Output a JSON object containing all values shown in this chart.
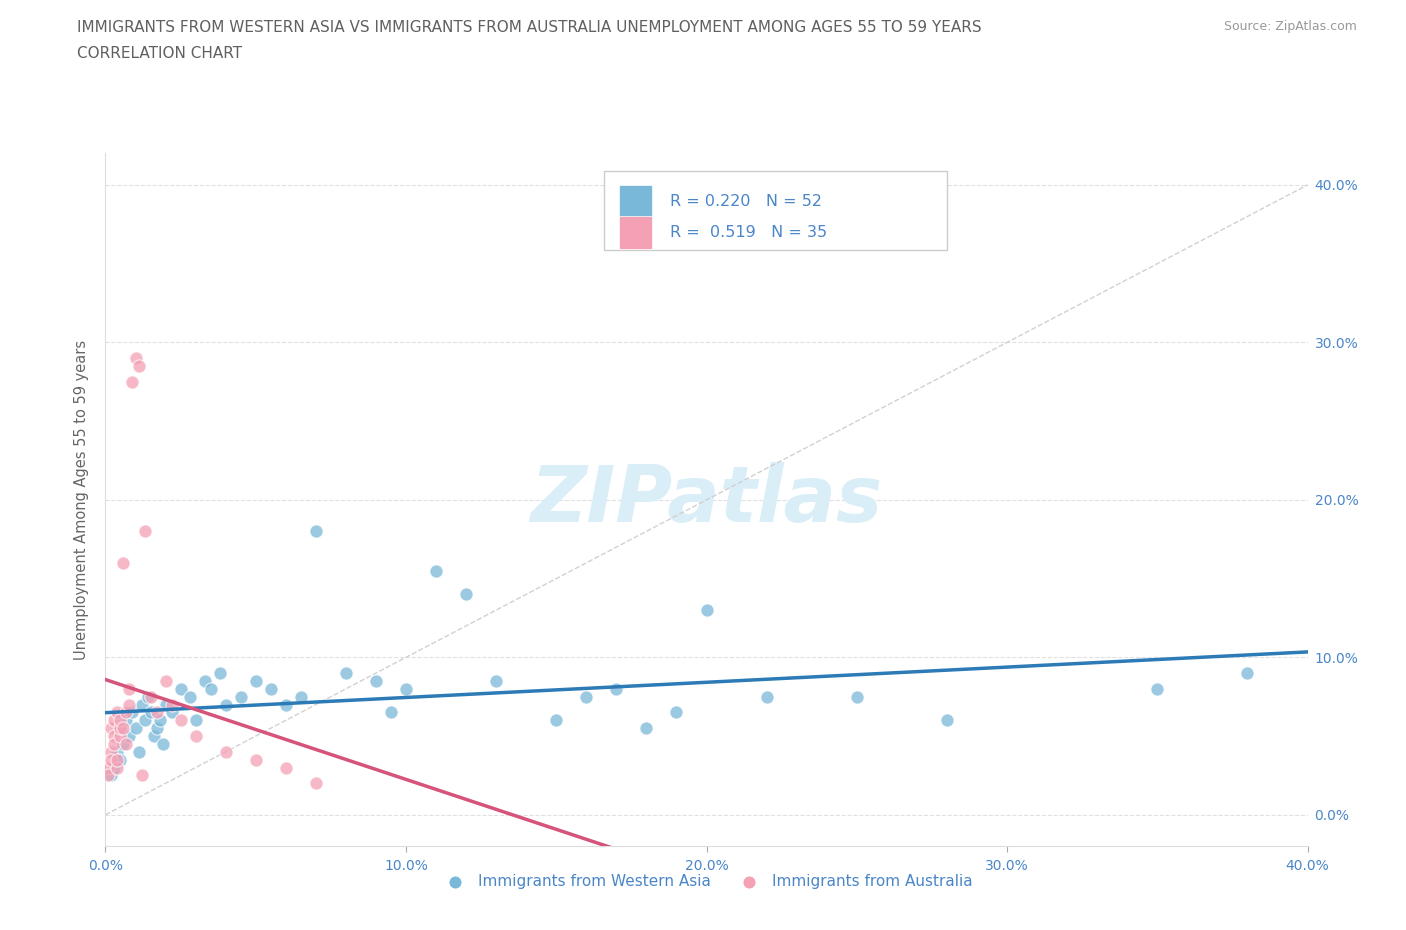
{
  "title_line1": "IMMIGRANTS FROM WESTERN ASIA VS IMMIGRANTS FROM AUSTRALIA UNEMPLOYMENT AMONG AGES 55 TO 59 YEARS",
  "title_line2": "CORRELATION CHART",
  "source_text": "Source: ZipAtlas.com",
  "ylabel": "Unemployment Among Ages 55 to 59 years",
  "xlim": [
    0.0,
    0.4
  ],
  "ylim": [
    -0.02,
    0.42
  ],
  "xticks": [
    0.0,
    0.1,
    0.2,
    0.3,
    0.4
  ],
  "yticks": [
    0.0,
    0.1,
    0.2,
    0.3,
    0.4
  ],
  "xtick_labels": [
    "0.0%",
    "10.0%",
    "20.0%",
    "30.0%",
    "40.0%"
  ],
  "ytick_labels_right": [
    "0.0%",
    "10.0%",
    "20.0%",
    "30.0%",
    "40.0%"
  ],
  "blue_color": "#7ab8d9",
  "pink_color": "#f4a0b5",
  "blue_line_color": "#2c7bb6",
  "pink_line_color": "#d6537a",
  "diagonal_color": "#cccccc",
  "watermark_color": "#daeef8",
  "legend_R_blue": "R = 0.220",
  "legend_N_blue": "N = 52",
  "legend_R_pink": "R =  0.519",
  "legend_N_pink": "N = 35",
  "blue_scatter_x": [
    0.002,
    0.003,
    0.004,
    0.005,
    0.005,
    0.006,
    0.007,
    0.008,
    0.009,
    0.01,
    0.011,
    0.012,
    0.013,
    0.014,
    0.015,
    0.016,
    0.017,
    0.018,
    0.019,
    0.02,
    0.022,
    0.025,
    0.028,
    0.03,
    0.033,
    0.035,
    0.038,
    0.04,
    0.045,
    0.05,
    0.055,
    0.06,
    0.065,
    0.07,
    0.08,
    0.09,
    0.095,
    0.1,
    0.11,
    0.12,
    0.13,
    0.15,
    0.16,
    0.17,
    0.18,
    0.19,
    0.2,
    0.22,
    0.25,
    0.28,
    0.35,
    0.38
  ],
  "blue_scatter_y": [
    0.025,
    0.03,
    0.04,
    0.035,
    0.055,
    0.045,
    0.06,
    0.05,
    0.065,
    0.055,
    0.04,
    0.07,
    0.06,
    0.075,
    0.065,
    0.05,
    0.055,
    0.06,
    0.045,
    0.07,
    0.065,
    0.08,
    0.075,
    0.06,
    0.085,
    0.08,
    0.09,
    0.07,
    0.075,
    0.085,
    0.08,
    0.07,
    0.075,
    0.18,
    0.09,
    0.085,
    0.065,
    0.08,
    0.155,
    0.14,
    0.085,
    0.06,
    0.075,
    0.08,
    0.055,
    0.065,
    0.13,
    0.075,
    0.075,
    0.06,
    0.08,
    0.09
  ],
  "pink_scatter_x": [
    0.001,
    0.001,
    0.002,
    0.002,
    0.002,
    0.003,
    0.003,
    0.003,
    0.004,
    0.004,
    0.004,
    0.005,
    0.005,
    0.005,
    0.006,
    0.006,
    0.007,
    0.007,
    0.008,
    0.008,
    0.009,
    0.01,
    0.011,
    0.012,
    0.013,
    0.015,
    0.017,
    0.02,
    0.022,
    0.025,
    0.03,
    0.04,
    0.05,
    0.06,
    0.07
  ],
  "pink_scatter_y": [
    0.03,
    0.025,
    0.04,
    0.035,
    0.055,
    0.05,
    0.045,
    0.06,
    0.03,
    0.035,
    0.065,
    0.05,
    0.055,
    0.06,
    0.16,
    0.055,
    0.045,
    0.065,
    0.08,
    0.07,
    0.275,
    0.29,
    0.285,
    0.025,
    0.18,
    0.075,
    0.065,
    0.085,
    0.07,
    0.06,
    0.05,
    0.04,
    0.035,
    0.03,
    0.02
  ],
  "title_color": "#606060",
  "axis_color": "#4a86c8"
}
